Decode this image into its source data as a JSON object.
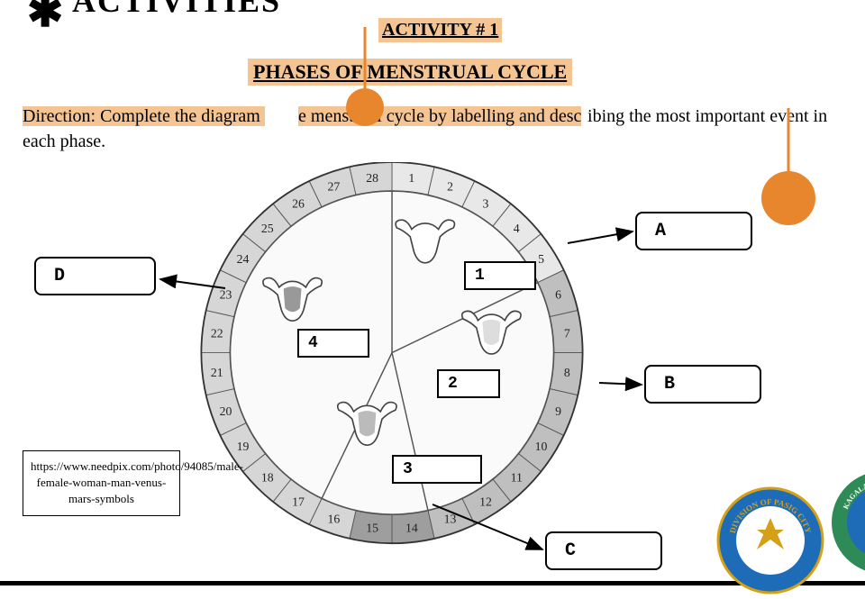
{
  "header": {
    "partial_title": "ACTIVITIES"
  },
  "activity": {
    "number": "ACTIVITY # 1",
    "title": "PHASES OF MENSTRUAL CYCLE",
    "direction_prefix": "Direction: Complete the diagram ",
    "direction_mid": "e menstrual cycle by labelling and desc",
    "direction_suffix": "ibing the most important event in each phase."
  },
  "diagram": {
    "days": [
      "1",
      "2",
      "3",
      "4",
      "5",
      "6",
      "7",
      "8",
      "9",
      "10",
      "11",
      "12",
      "13",
      "14",
      "15",
      "16",
      "17",
      "18",
      "19",
      "20",
      "21",
      "22",
      "23",
      "24",
      "25",
      "26",
      "27",
      "28"
    ],
    "segment_shades": {
      "day1_5": "#e8e8e8",
      "day6_13": "#bfbfbf",
      "day14_15": "#9e9e9e",
      "day16_28": "#d6d6d6"
    },
    "ring_outer_color": "#aaaaaa",
    "ring_inner_color": "#ffffff",
    "label_A": "A",
    "label_B": "B",
    "label_C": "C",
    "label_D": "D",
    "num_1": "1",
    "num_2": "2",
    "num_3": "3",
    "num_4": "4"
  },
  "credit": {
    "text": "https://www.needpix.com/photo/94085/male-female-woman-man-venus-mars-symbols"
  },
  "colors": {
    "highlight": "#f5c493",
    "drop": "#e8862e",
    "seal_blue": "#1e6bb8",
    "seal_gold": "#d4a017",
    "seal_green": "#2e8b57"
  }
}
